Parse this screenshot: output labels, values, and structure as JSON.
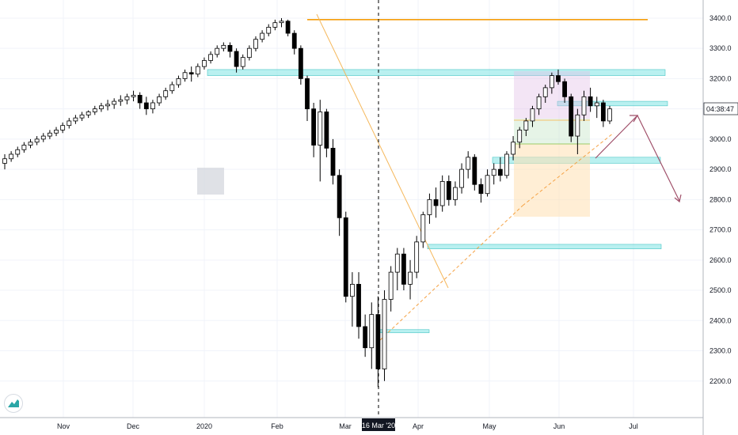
{
  "chart_data": {
    "type": "candlestick",
    "title": "",
    "instrument_note": "",
    "price_axis": {
      "ticks": [
        2200,
        2300,
        2400,
        2500,
        2600,
        2700,
        2800,
        2900,
        3000,
        3100,
        3200,
        3300,
        3400
      ],
      "tick_labels": [
        "2200.0",
        "2300.0",
        "2400.0",
        "2500.0",
        "2600.0",
        "2700.0",
        "2800.0",
        "2900.0",
        "3000.0",
        "3100.0",
        "3200.0",
        "3300.0",
        "3400.0"
      ],
      "range": [
        2100,
        3460
      ]
    },
    "time_axis": {
      "labels": [
        "Nov",
        "Dec",
        "2020",
        "Feb",
        "Mar",
        "Apr",
        "May",
        "Jun",
        "Jul"
      ],
      "crosshair_label": "16 Mar '20"
    },
    "countdown_label": "04:38:47",
    "candles": [
      [
        2920,
        2950,
        2900,
        2935
      ],
      [
        2935,
        2960,
        2925,
        2950
      ],
      [
        2950,
        2975,
        2940,
        2965
      ],
      [
        2965,
        2990,
        2955,
        2980
      ],
      [
        2980,
        3000,
        2970,
        2990
      ],
      [
        2990,
        3010,
        2980,
        3000
      ],
      [
        3000,
        3020,
        2990,
        3010
      ],
      [
        3010,
        3030,
        3000,
        3020
      ],
      [
        3020,
        3040,
        3010,
        3030
      ],
      [
        3030,
        3055,
        3020,
        3045
      ],
      [
        3045,
        3070,
        3035,
        3060
      ],
      [
        3060,
        3080,
        3050,
        3070
      ],
      [
        3070,
        3090,
        3060,
        3080
      ],
      [
        3080,
        3095,
        3070,
        3090
      ],
      [
        3090,
        3110,
        3080,
        3100
      ],
      [
        3100,
        3120,
        3090,
        3110
      ],
      [
        3110,
        3130,
        3095,
        3115
      ],
      [
        3115,
        3135,
        3100,
        3125
      ],
      [
        3125,
        3145,
        3110,
        3130
      ],
      [
        3130,
        3150,
        3115,
        3140
      ],
      [
        3140,
        3160,
        3125,
        3145
      ],
      [
        3145,
        3155,
        3100,
        3120
      ],
      [
        3120,
        3140,
        3080,
        3100
      ],
      [
        3100,
        3130,
        3085,
        3120
      ],
      [
        3120,
        3150,
        3110,
        3140
      ],
      [
        3140,
        3170,
        3130,
        3160
      ],
      [
        3160,
        3190,
        3150,
        3180
      ],
      [
        3180,
        3210,
        3170,
        3200
      ],
      [
        3200,
        3230,
        3190,
        3220
      ],
      [
        3220,
        3240,
        3190,
        3215
      ],
      [
        3215,
        3250,
        3205,
        3240
      ],
      [
        3240,
        3270,
        3230,
        3260
      ],
      [
        3260,
        3290,
        3250,
        3280
      ],
      [
        3280,
        3310,
        3270,
        3300
      ],
      [
        3300,
        3320,
        3290,
        3310
      ],
      [
        3310,
        3320,
        3270,
        3290
      ],
      [
        3290,
        3300,
        3220,
        3240
      ],
      [
        3240,
        3280,
        3230,
        3270
      ],
      [
        3270,
        3310,
        3260,
        3300
      ],
      [
        3300,
        3340,
        3290,
        3330
      ],
      [
        3330,
        3360,
        3320,
        3350
      ],
      [
        3350,
        3380,
        3340,
        3370
      ],
      [
        3370,
        3395,
        3360,
        3385
      ],
      [
        3385,
        3400,
        3370,
        3390
      ],
      [
        3390,
        3395,
        3340,
        3350
      ],
      [
        3350,
        3360,
        3280,
        3300
      ],
      [
        3300,
        3310,
        3180,
        3200
      ],
      [
        3200,
        3210,
        3060,
        3100
      ],
      [
        3100,
        3120,
        2940,
        2980
      ],
      [
        2980,
        3130,
        2860,
        3090
      ],
      [
        3090,
        3100,
        2940,
        2970
      ],
      [
        2970,
        3000,
        2850,
        2880
      ],
      [
        2880,
        2900,
        2680,
        2740
      ],
      [
        2740,
        2760,
        2460,
        2480
      ],
      [
        2480,
        2560,
        2380,
        2520
      ],
      [
        2520,
        2560,
        2340,
        2380
      ],
      [
        2380,
        2420,
        2280,
        2310
      ],
      [
        2310,
        2460,
        2240,
        2420
      ],
      [
        2420,
        2480,
        2180,
        2240
      ],
      [
        2240,
        2500,
        2200,
        2470
      ],
      [
        2470,
        2580,
        2430,
        2560
      ],
      [
        2560,
        2640,
        2500,
        2620
      ],
      [
        2620,
        2640,
        2500,
        2520
      ],
      [
        2520,
        2600,
        2470,
        2560
      ],
      [
        2560,
        2680,
        2540,
        2660
      ],
      [
        2660,
        2760,
        2640,
        2750
      ],
      [
        2750,
        2820,
        2720,
        2800
      ],
      [
        2800,
        2840,
        2740,
        2780
      ],
      [
        2780,
        2880,
        2760,
        2860
      ],
      [
        2860,
        2880,
        2780,
        2800
      ],
      [
        2800,
        2860,
        2780,
        2840
      ],
      [
        2840,
        2920,
        2820,
        2900
      ],
      [
        2900,
        2960,
        2870,
        2940
      ],
      [
        2940,
        2950,
        2830,
        2850
      ],
      [
        2850,
        2870,
        2790,
        2820
      ],
      [
        2820,
        2900,
        2810,
        2880
      ],
      [
        2880,
        2920,
        2850,
        2900
      ],
      [
        2900,
        2940,
        2860,
        2880
      ],
      [
        2880,
        2960,
        2870,
        2950
      ],
      [
        2950,
        3010,
        2930,
        2990
      ],
      [
        2990,
        3040,
        2970,
        3030
      ],
      [
        3030,
        3070,
        3010,
        3060
      ],
      [
        3060,
        3110,
        3040,
        3100
      ],
      [
        3100,
        3150,
        3080,
        3140
      ],
      [
        3140,
        3180,
        3120,
        3170
      ],
      [
        3170,
        3220,
        3150,
        3210
      ],
      [
        3210,
        3230,
        3180,
        3190
      ],
      [
        3190,
        3200,
        3120,
        3140
      ],
      [
        3140,
        3150,
        2990,
        3010
      ],
      [
        3010,
        3100,
        2950,
        3080
      ],
      [
        3080,
        3160,
        3060,
        3140
      ],
      [
        3140,
        3170,
        3090,
        3110
      ],
      [
        3110,
        3140,
        3070,
        3120
      ],
      [
        3120,
        3130,
        3040,
        3060
      ],
      [
        3060,
        3110,
        3050,
        3100
      ]
    ],
    "horizontal_levels": [
      {
        "price": 3395,
        "color": "#f59e0b",
        "kind": "resistance-line"
      },
      {
        "low": 3210,
        "high": 3230,
        "color": "#7fe3e3",
        "kind": "zone"
      },
      {
        "low": 3110,
        "high": 3125,
        "color": "#7fe3e3",
        "kind": "zone"
      },
      {
        "low": 2920,
        "high": 2940,
        "color": "#7fe3e3",
        "kind": "zone"
      },
      {
        "low": 2637,
        "high": 2652,
        "color": "#7fe3e3",
        "kind": "zone"
      },
      {
        "low": 2360,
        "high": 2370,
        "color": "#7fe3e3",
        "kind": "zone"
      }
    ],
    "projection_path": [
      [
        3000,
        3100
      ],
      [
        3100,
        3100
      ],
      [
        2800,
        2800
      ]
    ],
    "grid": true,
    "crosshair": true
  }
}
